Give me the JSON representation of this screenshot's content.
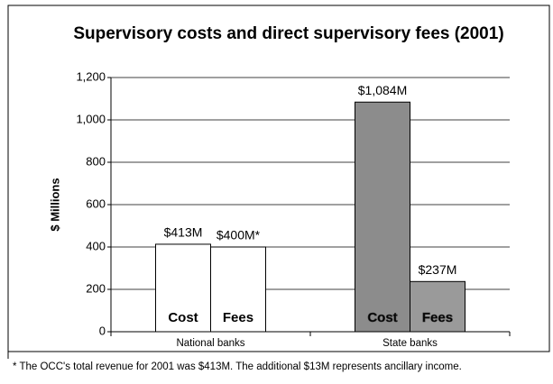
{
  "chart_data": {
    "type": "bar",
    "title": "Supervisory costs and direct supervisory fees (2001)",
    "y_label": "$ Millions",
    "categories": [
      "National banks",
      "State banks"
    ],
    "series": [
      {
        "name": "Cost",
        "colors": [
          "#ffffff",
          "#8c8c8c"
        ],
        "values": [
          413,
          1084
        ],
        "value_labels": [
          "$413M",
          "$1,084M"
        ]
      },
      {
        "name": "Fees",
        "colors": [
          "#ffffff",
          "#9a9a9a"
        ],
        "values": [
          400,
          237
        ],
        "value_labels": [
          "$400M*",
          "$237M"
        ]
      }
    ],
    "ylim": [
      0,
      1200
    ],
    "yticks": [
      0,
      200,
      400,
      600,
      800,
      {
        "value": 1000,
        "label": "1,000"
      },
      {
        "value": 1200,
        "label": "1,200"
      }
    ],
    "grid": true,
    "footnote": "* The OCC's total revenue for 2001 was $413M.  The additional $13M represents ancillary income."
  }
}
